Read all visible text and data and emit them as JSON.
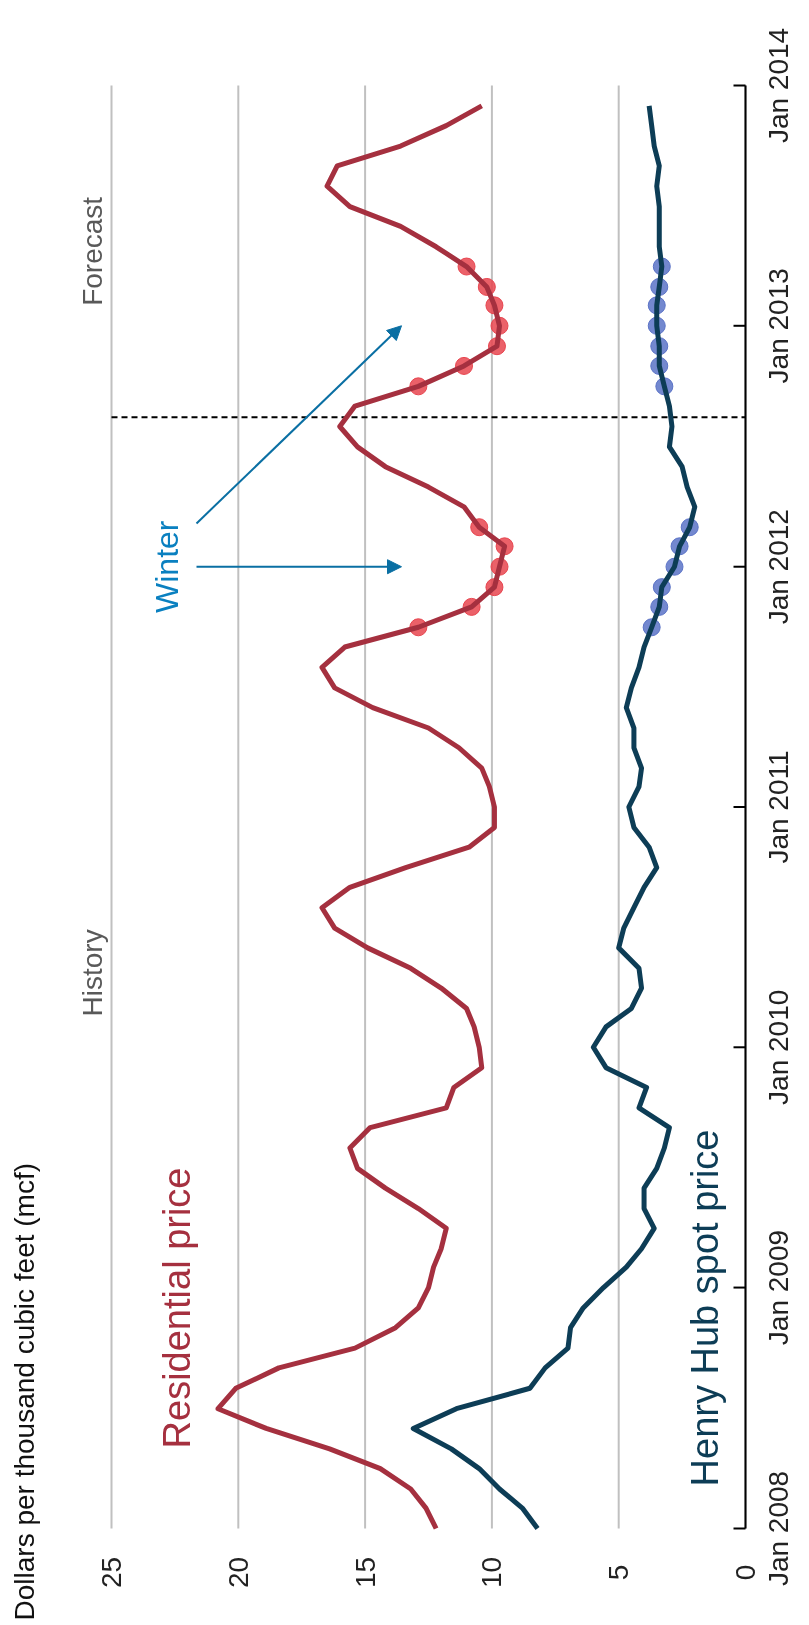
{
  "chart_data": {
    "type": "line",
    "ylabel": "Dollars per thousand cubic feet (mcf)",
    "x": [
      "2008-01",
      "2008-02",
      "2008-03",
      "2008-04",
      "2008-05",
      "2008-06",
      "2008-07",
      "2008-08",
      "2008-09",
      "2008-10",
      "2008-11",
      "2008-12",
      "2009-01",
      "2009-02",
      "2009-03",
      "2009-04",
      "2009-05",
      "2009-06",
      "2009-07",
      "2009-08",
      "2009-09",
      "2009-10",
      "2009-11",
      "2009-12",
      "2010-01",
      "2010-02",
      "2010-03",
      "2010-04",
      "2010-05",
      "2010-06",
      "2010-07",
      "2010-08",
      "2010-09",
      "2010-10",
      "2010-11",
      "2010-12",
      "2011-01",
      "2011-02",
      "2011-03",
      "2011-04",
      "2011-05",
      "2011-06",
      "2011-07",
      "2011-08",
      "2011-09",
      "2011-10",
      "2011-11",
      "2011-12",
      "2012-01",
      "2012-02",
      "2012-03",
      "2012-04",
      "2012-05",
      "2012-06",
      "2012-07",
      "2012-08",
      "2012-09",
      "2012-10",
      "2012-11",
      "2012-12",
      "2013-01",
      "2013-02",
      "2013-03",
      "2013-04",
      "2013-05",
      "2013-06",
      "2013-07",
      "2013-08",
      "2013-09",
      "2013-10",
      "2013-11",
      "2013-12"
    ],
    "series": [
      {
        "name": "Residential price",
        "color": "#a5303f",
        "values": [
          12.2,
          12.6,
          13.2,
          14.4,
          16.4,
          18.9,
          20.8,
          20.1,
          18.4,
          15.4,
          13.8,
          12.9,
          12.5,
          12.3,
          12.0,
          11.8,
          12.9,
          14.2,
          15.3,
          15.6,
          14.8,
          11.8,
          11.5,
          10.4,
          10.5,
          10.7,
          11.0,
          12.0,
          13.2,
          14.9,
          16.2,
          16.7,
          15.6,
          13.4,
          10.9,
          9.9,
          9.9,
          10.1,
          10.4,
          11.3,
          12.5,
          14.7,
          16.2,
          16.7,
          15.8,
          12.9,
          10.8,
          9.9,
          9.7,
          9.5,
          10.5,
          11.1,
          12.5,
          14.2,
          15.3,
          16.0,
          15.4,
          12.9,
          11.1,
          9.8,
          9.7,
          9.9,
          10.2,
          11.0,
          12.2,
          13.6,
          15.6,
          16.5,
          16.1,
          13.6,
          11.8,
          10.4
        ]
      },
      {
        "name": "Henry Hub spot price",
        "color": "#0d3d56",
        "values": [
          8.2,
          8.8,
          9.7,
          10.5,
          11.6,
          13.1,
          11.4,
          8.5,
          7.9,
          7.0,
          6.9,
          6.4,
          5.6,
          4.7,
          4.1,
          3.6,
          4.0,
          4.0,
          3.5,
          3.2,
          3.0,
          4.2,
          3.9,
          5.5,
          6.0,
          5.5,
          4.5,
          4.1,
          4.2,
          5.0,
          4.8,
          4.4,
          4.0,
          3.5,
          3.8,
          4.4,
          4.6,
          4.2,
          4.1,
          4.4,
          4.4,
          4.7,
          4.5,
          4.2,
          4.0,
          3.7,
          3.4,
          3.3,
          2.8,
          2.6,
          2.2,
          2.0,
          2.3,
          2.5,
          3.0,
          2.9,
          3.0,
          3.2,
          3.4,
          3.4,
          3.5,
          3.5,
          3.4,
          3.3,
          3.4,
          3.4,
          3.4,
          3.5,
          3.4,
          3.6,
          3.7,
          3.8
        ]
      },
      {
        "type": "scatter",
        "marker": "circle",
        "color": "#e8454f",
        "x": [
          "2011-10",
          "2011-11",
          "2011-12",
          "2012-01",
          "2012-02",
          "2012-03",
          "2012-10",
          "2012-11",
          "2012-12",
          "2013-01",
          "2013-02",
          "2013-03",
          "2013-04"
        ],
        "values": [
          12.9,
          10.8,
          9.9,
          9.7,
          9.5,
          10.5,
          12.9,
          11.1,
          9.8,
          9.7,
          9.9,
          10.2,
          11.0
        ]
      },
      {
        "type": "scatter",
        "marker": "circle",
        "color": "#5b73c7",
        "x": [
          "2011-10",
          "2011-11",
          "2011-12",
          "2012-01",
          "2012-02",
          "2012-03",
          "2012-10",
          "2012-11",
          "2012-12",
          "2013-01",
          "2013-02",
          "2013-03",
          "2013-04"
        ],
        "values": [
          3.7,
          3.4,
          3.3,
          2.8,
          2.6,
          2.2,
          3.2,
          3.4,
          3.4,
          3.5,
          3.5,
          3.4,
          3.3
        ]
      }
    ],
    "orientation": "horizontal",
    "ylim": [
      "2008-01",
      "2014-01"
    ],
    "yticks": [
      {
        "value": "2008-01",
        "label": "Jan 2008"
      },
      {
        "value": "2009-01",
        "label": "Jan 2009"
      },
      {
        "value": "2010-01",
        "label": "Jan 2010"
      },
      {
        "value": "2011-01",
        "label": "Jan 2011"
      },
      {
        "value": "2012-01",
        "label": "Jan 2012"
      },
      {
        "value": "2013-01",
        "label": "Jan 2013"
      },
      {
        "value": "2014-01",
        "label": "Jan 2014"
      }
    ],
    "xlim": [
      25,
      0
    ],
    "xticks": [
      0,
      5,
      10,
      15,
      20,
      25
    ],
    "grid": "x",
    "ref_lines": [
      {
        "axis": "y",
        "value": "2012-08-15",
        "line_style": "dashed",
        "color": "#000000"
      }
    ],
    "annotations": [
      "History",
      "Forecast",
      "Winter"
    ]
  }
}
